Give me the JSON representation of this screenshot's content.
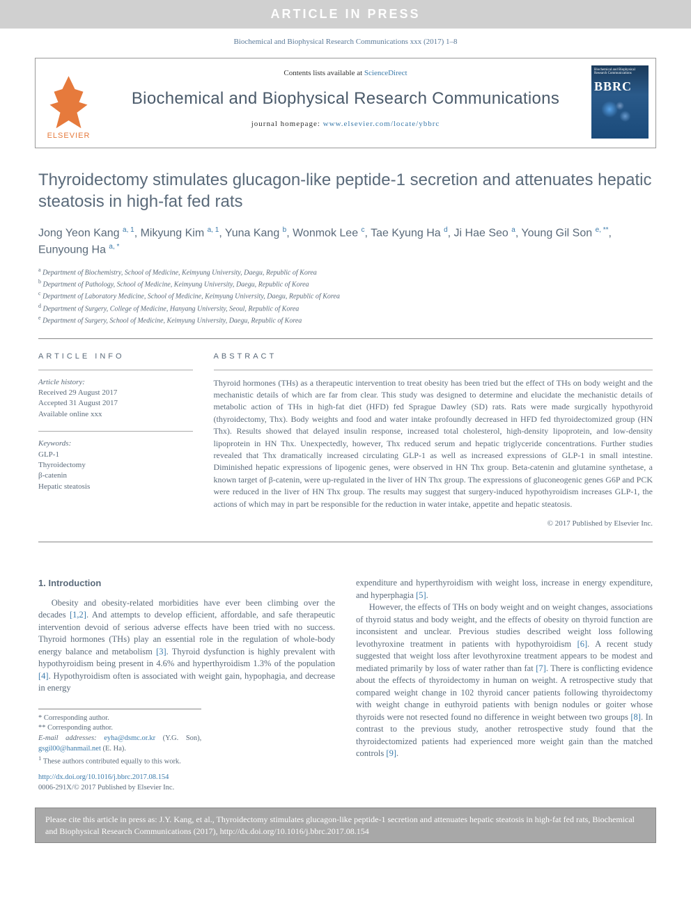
{
  "banner": "ARTICLE IN PRESS",
  "topCitation": "Biochemical and Biophysical Research Communications xxx (2017) 1–8",
  "header": {
    "contentsPrefix": "Contents lists available at ",
    "contentsLink": "ScienceDirect",
    "journalName": "Biochemical and Biophysical Research Communications",
    "homepagePrefix": "journal homepage: ",
    "homepageUrl": "www.elsevier.com/locate/ybbrc",
    "elsevier": "ELSEVIER",
    "coverAbbrev": "BBRC"
  },
  "title": "Thyroidectomy stimulates glucagon-like peptide-1 secretion and attenuates hepatic steatosis in high-fat fed rats",
  "authorsHtml": "Jong Yeon Kang <sup>a, 1</sup>, Mikyung Kim <sup>a, 1</sup>, Yuna Kang <sup>b</sup>, Wonmok Lee <sup>c</sup>, Tae Kyung Ha <sup>d</sup>, Ji Hae Seo <sup>a</sup>, Young Gil Son <sup>e, **</sup>, Eunyoung Ha <sup>a, *</sup>",
  "affiliations": [
    {
      "sup": "a",
      "text": "Department of Biochemistry, School of Medicine, Keimyung University, Daegu, Republic of Korea"
    },
    {
      "sup": "b",
      "text": "Department of Pathology, School of Medicine, Keimyung University, Daegu, Republic of Korea"
    },
    {
      "sup": "c",
      "text": "Department of Laboratory Medicine, School of Medicine, Keimyung University, Daegu, Republic of Korea"
    },
    {
      "sup": "d",
      "text": "Department of Surgery, College of Medicine, Hanyang University, Seoul, Republic of Korea"
    },
    {
      "sup": "e",
      "text": "Department of Surgery, School of Medicine, Keimyung University, Daegu, Republic of Korea"
    }
  ],
  "articleInfo": {
    "label": "ARTICLE INFO",
    "historyLabel": "Article history:",
    "received": "Received 29 August 2017",
    "accepted": "Accepted 31 August 2017",
    "online": "Available online xxx",
    "keywordsLabel": "Keywords:",
    "keywords": [
      "GLP-1",
      "Thyroidectomy",
      "β-catenin",
      "Hepatic steatosis"
    ]
  },
  "abstract": {
    "label": "ABSTRACT",
    "text": "Thyroid hormones (THs) as a therapeutic intervention to treat obesity has been tried but the effect of THs on body weight and the mechanistic details of which are far from clear. This study was designed to determine and elucidate the mechanistic details of metabolic action of THs in high-fat diet (HFD) fed Sprague Dawley (SD) rats. Rats were made surgically hypothyroid (thyroidectomy, Thx). Body weights and food and water intake profoundly decreased in HFD fed thyroidectomized group (HN Thx). Results showed that delayed insulin response, increased total cholesterol, high-density lipoprotein, and low-density lipoprotein in HN Thx. Unexpectedly, however, Thx reduced serum and hepatic triglyceride concentrations. Further studies revealed that Thx dramatically increased circulating GLP-1 as well as increased expressions of GLP-1 in small intestine. Diminished hepatic expressions of lipogenic genes, were observed in HN Thx group. Beta-catenin and glutamine synthetase, a known target of β-catenin, were up-regulated in the liver of HN Thx group. The expressions of gluconeogenic genes G6P and PCK were reduced in the liver of HN Thx group. The results may suggest that surgery-induced hypothyroidism increases GLP-1, the actions of which may in part be responsible for the reduction in water intake, appetite and hepatic steatosis.",
    "copyright": "© 2017 Published by Elsevier Inc."
  },
  "body": {
    "introHeading": "1. Introduction",
    "para1a": "Obesity and obesity-related morbidities have ever been climbing over the decades ",
    "ref12": "[1,2]",
    "para1b": ". And attempts to develop efficient, affordable, and safe therapeutic intervention devoid of serious adverse effects have been tried with no success. Thyroid hormones (THs) play an essential role in the regulation of whole-body energy balance and metabolism ",
    "ref3": "[3]",
    "para1c": ". Thyroid dysfunction is highly prevalent with hypothyroidism being present in 4.6% and hyperthyroidism 1.3% of the population ",
    "ref4": "[4]",
    "para1d": ". Hypothyroidism often is associated with weight gain, hypophagia, and decrease in energy",
    "para1e": "expenditure and hyperthyroidism with weight loss, increase in energy expenditure, and hyperphagia ",
    "ref5": "[5]",
    "para1f": ".",
    "para2a": "However, the effects of THs on body weight and on weight changes, associations of thyroid status and body weight, and the effects of obesity on thyroid function are inconsistent and unclear. Previous studies described weight loss following levothyroxine treatment in patients with hypothyroidism ",
    "ref6": "[6]",
    "para2b": ". A recent study suggested that weight loss after levothyroxine treatment appears to be modest and mediated primarily by loss of water rather than fat ",
    "ref7": "[7]",
    "para2c": ". There is conflicting evidence about the effects of thyroidectomy in human on weight. A retrospective study that compared weight change in 102 thyroid cancer patients following thyroidectomy with weight change in euthyroid patients with benign nodules or goiter whose thyroids were not resected found no difference in weight between two groups ",
    "ref8": "[8]",
    "para2d": ". In contrast to the previous study, another retrospective study found that the thyroidectomized patients had experienced more weight gain than the matched controls ",
    "ref9": "[9]",
    "para2e": "."
  },
  "correspondence": {
    "star1": "* Corresponding author.",
    "star2": "** Corresponding author.",
    "emailLabel": "E-mail addresses: ",
    "email1": "eyha@dsmc.or.kr",
    "email1who": " (Y.G. Son), ",
    "email2": "gsgil00@hanmail.net",
    "email2who": " (E. Ha).",
    "note1": "These authors contributed equally to this work.",
    "note1sup": "1"
  },
  "doi": {
    "url": "http://dx.doi.org/10.1016/j.bbrc.2017.08.154",
    "issn": "0006-291X/© 2017 Published by Elsevier Inc."
  },
  "citeFooter": "Please cite this article in press as: J.Y. Kang, et al., Thyroidectomy stimulates glucagon-like peptide-1 secretion and attenuates hepatic steatosis in high-fat fed rats, Biochemical and Biophysical Research Communications (2017), http://dx.doi.org/10.1016/j.bbrc.2017.08.154",
  "colors": {
    "bannerBg": "#d0d0d0",
    "link": "#3b7aaa",
    "text": "#5a6a7a",
    "elsevierOrange": "#e67a3c",
    "footerBg": "#a8a8a8"
  }
}
